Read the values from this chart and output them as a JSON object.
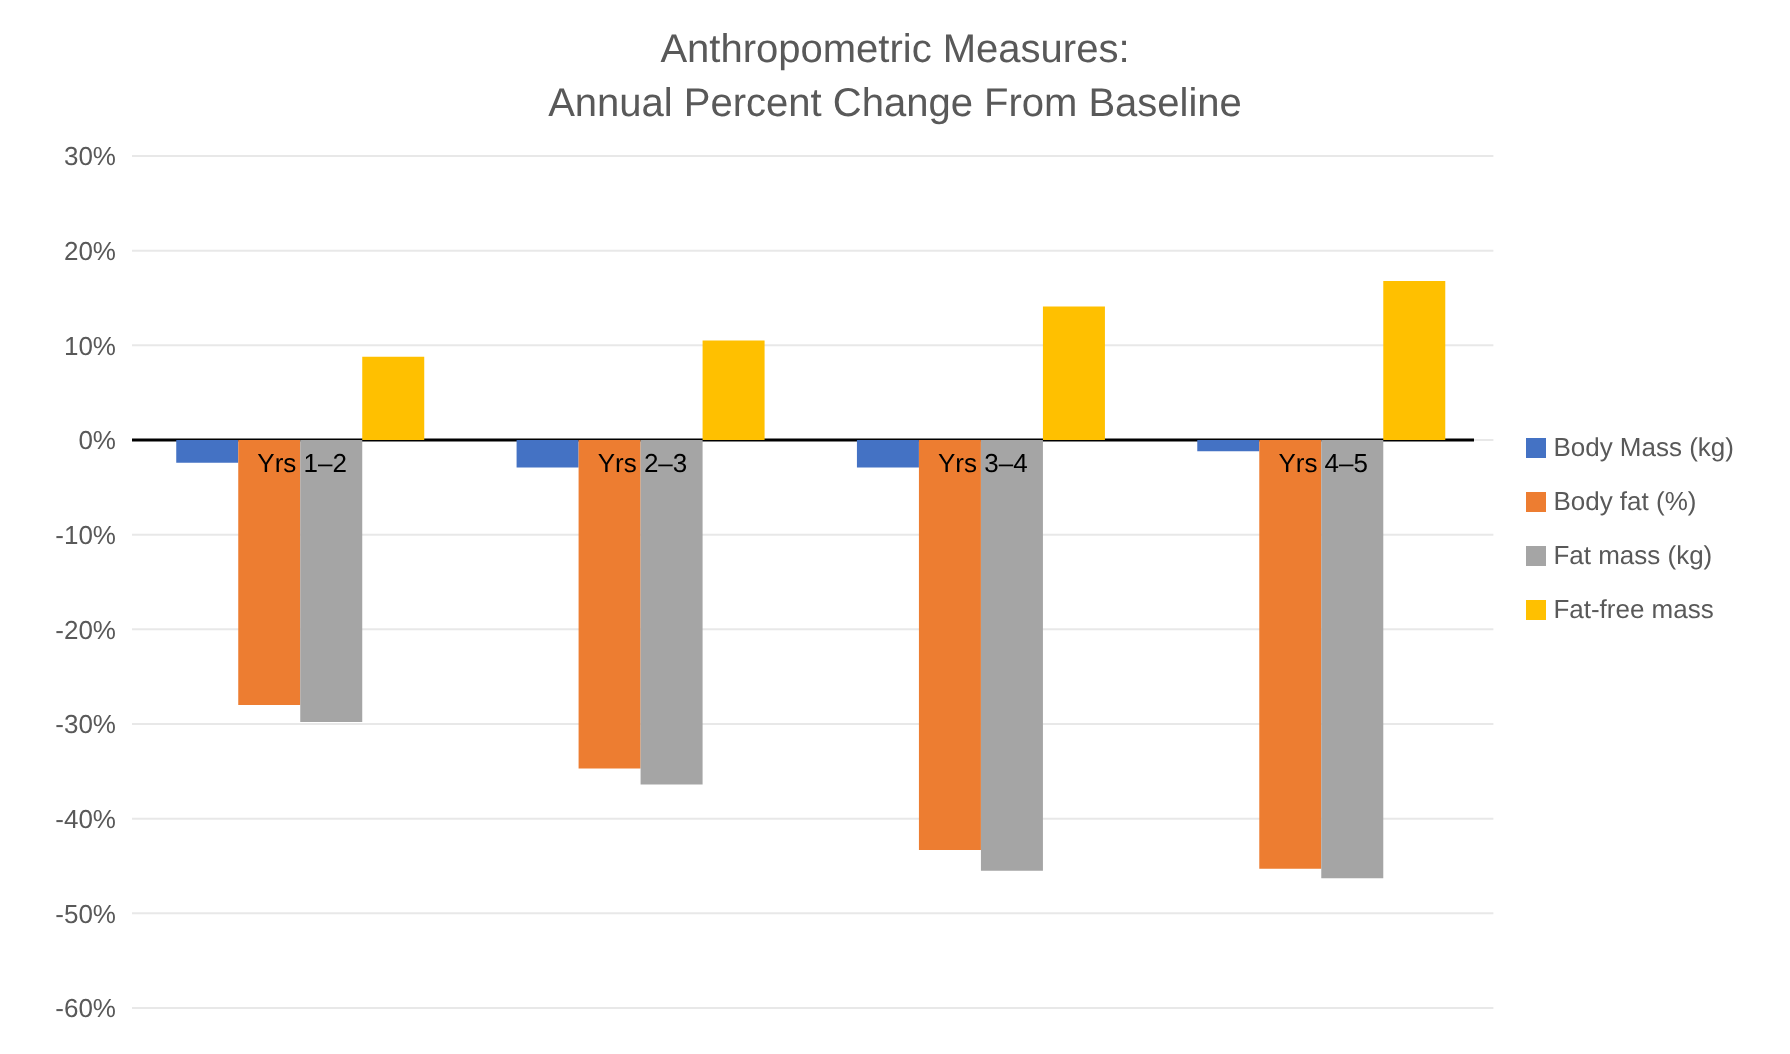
{
  "chart_data": {
    "type": "bar",
    "title": "Anthropometric Measures:\nAnnual Percent Change From Baseline",
    "categories": [
      "Yrs 1–2",
      "Yrs 2–3",
      "Yrs 3–4",
      "Yrs 4–5"
    ],
    "series": [
      {
        "name": "Body Mass (kg)",
        "color": "#4472c4",
        "values": [
          -2.4,
          -2.9,
          -2.9,
          -1.2
        ]
      },
      {
        "name": "Body fat (%)",
        "color": "#ed7d31",
        "values": [
          -28.0,
          -34.7,
          -43.3,
          -45.3
        ]
      },
      {
        "name": "Fat mass (kg)",
        "color": "#a5a5a5",
        "values": [
          -29.8,
          -36.4,
          -45.5,
          -46.3
        ]
      },
      {
        "name": "Fat-free mass",
        "color": "#ffc000",
        "values": [
          8.8,
          10.5,
          14.1,
          16.8
        ]
      }
    ],
    "ylim": [
      -60,
      30
    ],
    "yticks": [
      {
        "value": -60,
        "label": "-60%"
      },
      {
        "value": -50,
        "label": "-50%"
      },
      {
        "value": -40,
        "label": "-40%"
      },
      {
        "value": -30,
        "label": "-30%"
      },
      {
        "value": -20,
        "label": "-20%"
      },
      {
        "value": -10,
        "label": "-10%"
      },
      {
        "value": 0,
        "label": "0%"
      },
      {
        "value": 10,
        "label": "10%"
      },
      {
        "value": 20,
        "label": "20%"
      },
      {
        "value": 30,
        "label": "30%"
      }
    ],
    "grid": "y",
    "legend": "right"
  }
}
